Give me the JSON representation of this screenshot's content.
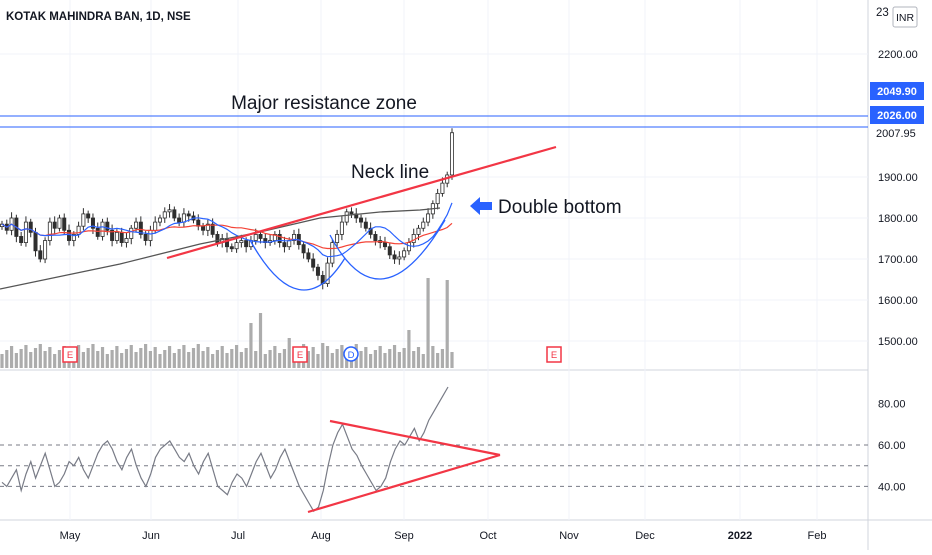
{
  "header": {
    "title": "KOTAK MAHINDRA BAN, 1D, NSE",
    "currency_badge": "INR",
    "top_price_partial": "23"
  },
  "colors": {
    "up": "#26a69a",
    "down": "#2e2e2e",
    "resistance_line": "#2962ff",
    "trend_line": "#f23645",
    "ma_red": "#f44336",
    "ma_blue": "#2962ff",
    "ma_black": "#555555",
    "grid": "#f0f3fa",
    "volume": "#9e9e9e",
    "earnings_badge": "#f23645",
    "dividend_badge": "#2962ff",
    "price_badge": "#2962ff"
  },
  "chart_data": [
    {
      "type": "candlestick",
      "title": "KOTAK MAHINDRA BAN, 1D, NSE",
      "x_axis_labels": [
        "May",
        "Jun",
        "Jul",
        "Aug",
        "Sep",
        "Oct",
        "Nov",
        "Dec",
        "2022",
        "Feb"
      ],
      "y_ticks": [
        2200,
        1900,
        1800,
        1700,
        1600,
        1500
      ],
      "y_tick_labels": [
        "2200.00",
        "1900.00",
        "1800.00",
        "1700.00",
        "1600.00",
        "1500.00"
      ],
      "ylim": [
        1450,
        2380
      ],
      "price_labels": [
        "2049.90",
        "2026.00",
        "2007.95"
      ],
      "price_levels": [
        2049.9,
        2026.0,
        2007.95
      ],
      "closes": [
        1785,
        1770,
        1800,
        1755,
        1740,
        1790,
        1765,
        1720,
        1700,
        1745,
        1790,
        1775,
        1800,
        1770,
        1745,
        1760,
        1780,
        1810,
        1800,
        1775,
        1755,
        1790,
        1770,
        1745,
        1765,
        1740,
        1750,
        1775,
        1790,
        1760,
        1745,
        1770,
        1790,
        1800,
        1815,
        1820,
        1800,
        1790,
        1810,
        1805,
        1795,
        1780,
        1770,
        1785,
        1760,
        1740,
        1750,
        1730,
        1725,
        1740,
        1745,
        1730,
        1745,
        1760,
        1750,
        1740,
        1745,
        1760,
        1740,
        1730,
        1745,
        1760,
        1735,
        1715,
        1700,
        1680,
        1660,
        1640,
        1690,
        1740,
        1760,
        1790,
        1815,
        1810,
        1800,
        1790,
        1775,
        1760,
        1745,
        1740,
        1730,
        1710,
        1700,
        1705,
        1720,
        1740,
        1760,
        1775,
        1790,
        1810,
        1835,
        1860,
        1885,
        1905,
        2007.95
      ],
      "volume_ticks_drawn": true,
      "annotations": {
        "resistance": "Major resistance zone",
        "neckline": "Neck line",
        "pattern": "Double bottom"
      },
      "event_badges": [
        "E",
        "E",
        "D",
        "E"
      ]
    },
    {
      "type": "line",
      "y_ticks": [
        80,
        60,
        40
      ],
      "y_tick_labels": [
        "80.00",
        "60.00",
        "40.00"
      ],
      "ylim": [
        20,
        95
      ],
      "dashed_levels": [
        60,
        50,
        40
      ],
      "values": [
        42,
        40,
        44,
        48,
        38,
        46,
        52,
        44,
        50,
        56,
        48,
        40,
        42,
        46,
        52,
        50,
        54,
        48,
        44,
        50,
        56,
        60,
        62,
        58,
        52,
        48,
        54,
        58,
        50,
        44,
        40,
        46,
        54,
        58,
        60,
        62,
        58,
        54,
        52,
        56,
        50,
        46,
        52,
        56,
        48,
        40,
        38,
        36,
        42,
        46,
        44,
        40,
        46,
        52,
        56,
        50,
        44,
        48,
        54,
        58,
        52,
        46,
        40,
        36,
        32,
        28,
        30,
        38,
        50,
        60,
        66,
        70,
        64,
        58,
        55,
        50,
        46,
        42,
        38,
        40,
        44,
        52,
        58,
        62,
        60,
        64,
        68,
        62,
        66,
        72,
        76,
        80,
        84,
        88
      ]
    }
  ]
}
